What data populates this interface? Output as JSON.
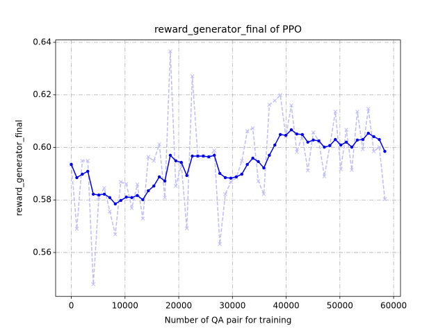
{
  "chart_data": {
    "type": "line",
    "title": "reward_generator_final of PPO",
    "x_label": "Number of QA pair for training",
    "y_label": "reward_generator_final",
    "x": [
      0,
      1024,
      2048,
      3072,
      4096,
      5120,
      6144,
      7168,
      8192,
      9216,
      10240,
      11264,
      12288,
      13312,
      14336,
      15360,
      16384,
      17408,
      18432,
      19456,
      20480,
      21504,
      22528,
      23552,
      24576,
      25600,
      26624,
      27648,
      28672,
      29696,
      30720,
      31744,
      32768,
      33792,
      34816,
      35840,
      36864,
      37888,
      38912,
      39936,
      40960,
      41984,
      43008,
      44032,
      45056,
      46080,
      47104,
      48128,
      49152,
      50176,
      51200,
      52224,
      53248,
      54272,
      55296,
      56320,
      57344,
      58368
    ],
    "series": [
      {
        "color": "#bdbdfb",
        "linestyle": "dashed",
        "marker": "x",
        "values": [
          0.5935,
          0.569,
          0.5949,
          0.5949,
          0.5479,
          0.5809,
          0.5846,
          0.5756,
          0.5669,
          0.5869,
          0.5861,
          0.5769,
          0.5859,
          0.5729,
          0.5964,
          0.5949,
          0.6012,
          0.5809,
          0.6366,
          0.5853,
          0.5933,
          0.5692,
          0.6271,
          0.5967,
          0.5967,
          0.5964,
          0.5988,
          0.5632,
          0.5822,
          0.5869,
          0.5885,
          0.5949,
          0.6062,
          0.6073,
          0.5872,
          0.5822,
          0.6162,
          0.6178,
          0.6199,
          0.6041,
          0.616,
          0.5983,
          0.6044,
          0.5912,
          0.6057,
          0.6025,
          0.589,
          0.6007,
          0.6136,
          0.5917,
          0.6067,
          0.5914,
          0.6136,
          0.5993,
          0.6147,
          0.5985,
          0.6001,
          0.5803
        ]
      },
      {
        "color": "#0000ee",
        "linestyle": "solid",
        "marker": "dot",
        "values": [
          0.5935,
          0.5885,
          0.5898,
          0.5909,
          0.5822,
          0.5819,
          0.5822,
          0.5809,
          0.5785,
          0.5798,
          0.5811,
          0.5809,
          0.5817,
          0.5801,
          0.5835,
          0.5853,
          0.5888,
          0.5872,
          0.597,
          0.5949,
          0.5943,
          0.5893,
          0.5967,
          0.5967,
          0.5967,
          0.5964,
          0.597,
          0.5901,
          0.5885,
          0.5883,
          0.5888,
          0.5898,
          0.5935,
          0.5959,
          0.5946,
          0.5922,
          0.597,
          0.6009,
          0.6049,
          0.6046,
          0.6067,
          0.6051,
          0.6049,
          0.602,
          0.6028,
          0.6025,
          0.6001,
          0.6007,
          0.603,
          0.6009,
          0.602,
          0.6001,
          0.6028,
          0.603,
          0.6054,
          0.6041,
          0.603,
          0.5985
        ]
      }
    ],
    "xlim": [
      -2918,
      61286
    ],
    "ylim": [
      0.5433,
      0.6409
    ],
    "xticks": [
      0,
      10000,
      20000,
      30000,
      40000,
      50000,
      60000
    ],
    "yticks": [
      0.56,
      0.58,
      {
        "value": 0.6,
        "label": "0.60"
      },
      0.62,
      0.64
    ],
    "grid": true
  }
}
